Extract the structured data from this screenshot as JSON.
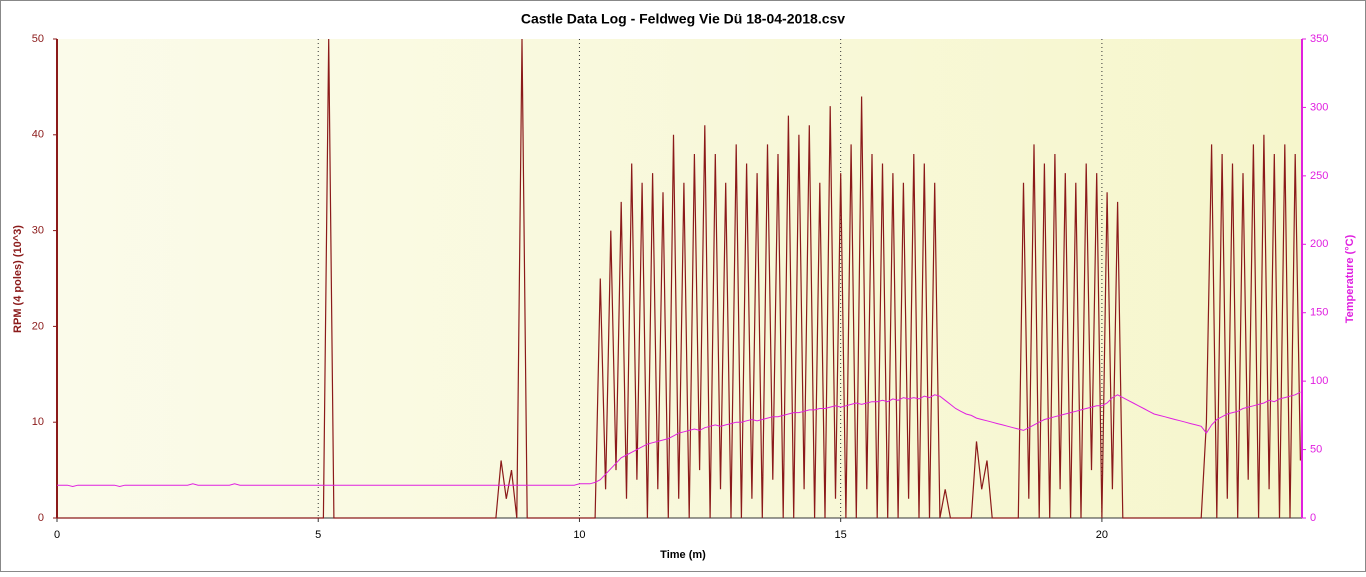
{
  "chart_data": {
    "type": "line",
    "title": "Castle Data Log - Feldweg Vie Dü 18-04-2018.csv",
    "x_label": "Time (m)",
    "y_label": "RPM (4 poles) (10^3)",
    "y2_label": "Temperature (°C)",
    "xlim": [
      0,
      23.83
    ],
    "xticks": [
      0,
      5,
      10,
      15,
      20
    ],
    "ylim": [
      0,
      50
    ],
    "yticks": [
      0,
      10,
      20,
      30,
      40,
      50
    ],
    "y2lim": [
      0,
      350
    ],
    "y2ticks": [
      0,
      50,
      100,
      150,
      200,
      250,
      300,
      350
    ],
    "grid": true,
    "x": [
      0,
      0.1,
      0.2,
      0.3,
      0.4,
      0.5,
      0.6,
      0.7,
      0.8,
      0.9,
      1,
      1.1,
      1.2,
      1.3,
      1.4,
      1.5,
      1.6,
      1.7,
      1.8,
      1.9,
      2,
      2.1,
      2.2,
      2.3,
      2.4,
      2.5,
      2.6,
      2.7,
      2.8,
      2.9,
      3,
      3.1,
      3.2,
      3.3,
      3.4,
      3.5,
      3.6,
      3.7,
      3.8,
      3.9,
      4,
      4.1,
      4.2,
      4.3,
      4.4,
      4.5,
      4.6,
      4.7,
      4.8,
      4.9,
      5,
      5.1,
      5.2,
      5.3,
      5.4,
      5.5,
      5.6,
      5.7,
      5.8,
      5.9,
      6,
      6.1,
      6.2,
      6.3,
      6.4,
      6.5,
      6.6,
      6.7,
      6.8,
      6.9,
      7,
      7.1,
      7.2,
      7.3,
      7.4,
      7.5,
      7.6,
      7.7,
      7.8,
      7.9,
      8,
      8.1,
      8.2,
      8.3,
      8.4,
      8.5,
      8.6,
      8.7,
      8.8,
      8.9,
      9,
      9.1,
      9.2,
      9.3,
      9.4,
      9.5,
      9.6,
      9.7,
      9.8,
      9.9,
      10,
      10.1,
      10.2,
      10.3,
      10.4,
      10.5,
      10.6,
      10.7,
      10.8,
      10.9,
      11,
      11.1,
      11.2,
      11.3,
      11.4,
      11.5,
      11.6,
      11.7,
      11.8,
      11.9,
      12,
      12.1,
      12.2,
      12.3,
      12.4,
      12.5,
      12.6,
      12.7,
      12.8,
      12.9,
      13,
      13.1,
      13.2,
      13.3,
      13.4,
      13.5,
      13.6,
      13.7,
      13.8,
      13.9,
      14,
      14.1,
      14.2,
      14.3,
      14.4,
      14.5,
      14.6,
      14.7,
      14.8,
      14.9,
      15,
      15.1,
      15.2,
      15.3,
      15.4,
      15.5,
      15.6,
      15.7,
      15.8,
      15.9,
      16,
      16.1,
      16.2,
      16.3,
      16.4,
      16.5,
      16.6,
      16.7,
      16.8,
      16.9,
      17,
      17.1,
      17.2,
      17.3,
      17.4,
      17.5,
      17.6,
      17.7,
      17.8,
      17.9,
      18,
      18.1,
      18.2,
      18.3,
      18.4,
      18.5,
      18.6,
      18.7,
      18.8,
      18.9,
      19,
      19.1,
      19.2,
      19.3,
      19.4,
      19.5,
      19.6,
      19.7,
      19.8,
      19.9,
      20,
      20.1,
      20.2,
      20.3,
      20.4,
      20.5,
      20.6,
      20.7,
      20.8,
      20.9,
      21,
      21.1,
      21.2,
      21.3,
      21.4,
      21.5,
      21.6,
      21.7,
      21.8,
      21.9,
      22,
      22.1,
      22.2,
      22.3,
      22.4,
      22.5,
      22.6,
      22.7,
      22.8,
      22.9,
      23,
      23.1,
      23.2,
      23.3,
      23.4,
      23.5,
      23.6,
      23.7,
      23.8
    ],
    "series": [
      {
        "name": "RPM (4 poles)",
        "color": "#8b1a1a",
        "axis": "y",
        "values": [
          0,
          0,
          0,
          0,
          0,
          0,
          0,
          0,
          0,
          0,
          0,
          0,
          0,
          0,
          0,
          0,
          0,
          0,
          0,
          0,
          0,
          0,
          0,
          0,
          0,
          0,
          0,
          0,
          0,
          0,
          0,
          0,
          0,
          0,
          0,
          0,
          0,
          0,
          0,
          0,
          0,
          0,
          0,
          0,
          0,
          0,
          0,
          0,
          0,
          0,
          0,
          0,
          50,
          0,
          0,
          0,
          0,
          0,
          0,
          0,
          0,
          0,
          0,
          0,
          0,
          0,
          0,
          0,
          0,
          0,
          0,
          0,
          0,
          0,
          0,
          0,
          0,
          0,
          0,
          0,
          0,
          0,
          0,
          0,
          0,
          6,
          2,
          5,
          0,
          50,
          0,
          0,
          0,
          0,
          0,
          0,
          0,
          0,
          0,
          0,
          0,
          0,
          0,
          0,
          25,
          3,
          30,
          5,
          33,
          2,
          37,
          4,
          35,
          0,
          36,
          3,
          34,
          0,
          40,
          2,
          35,
          0,
          38,
          5,
          41,
          0,
          38,
          3,
          35,
          0,
          39,
          0,
          37,
          2,
          36,
          0,
          39,
          4,
          38,
          0,
          42,
          0,
          40,
          3,
          41,
          0,
          35,
          0,
          43,
          2,
          36,
          0,
          39,
          0,
          44,
          3,
          38,
          0,
          37,
          0,
          36,
          0,
          35,
          2,
          38,
          0,
          37,
          0,
          35,
          0,
          3,
          0,
          0,
          0,
          0,
          0,
          8,
          3,
          6,
          0,
          0,
          0,
          0,
          0,
          0,
          35,
          2,
          39,
          0,
          37,
          0,
          38,
          3,
          36,
          0,
          35,
          0,
          37,
          5,
          36,
          0,
          34,
          3,
          33,
          0,
          0,
          0,
          0,
          0,
          0,
          0,
          0,
          0,
          0,
          0,
          0,
          0,
          0,
          0,
          0,
          10,
          39,
          0,
          38,
          2,
          37,
          0,
          36,
          4,
          39,
          0,
          40,
          3,
          38,
          0,
          39,
          0,
          38,
          6
        ]
      },
      {
        "name": "Temperature",
        "color": "#e020e0",
        "axis": "y2",
        "values": [
          24,
          24,
          24,
          23,
          24,
          24,
          24,
          24,
          24,
          24,
          24,
          24,
          23,
          24,
          24,
          24,
          24,
          24,
          24,
          24,
          24,
          24,
          24,
          24,
          24,
          24,
          25,
          24,
          24,
          24,
          24,
          24,
          24,
          24,
          25,
          24,
          24,
          24,
          24,
          24,
          24,
          24,
          24,
          24,
          24,
          24,
          24,
          24,
          24,
          24,
          24,
          24,
          24,
          24,
          24,
          24,
          24,
          24,
          24,
          24,
          24,
          24,
          24,
          24,
          24,
          24,
          24,
          24,
          24,
          24,
          24,
          24,
          24,
          24,
          24,
          24,
          24,
          24,
          24,
          24,
          24,
          24,
          24,
          24,
          24,
          24,
          24,
          24,
          24,
          24,
          24,
          24,
          24,
          24,
          24,
          24,
          24,
          24,
          24,
          24,
          25,
          25,
          25,
          26,
          28,
          32,
          36,
          40,
          44,
          46,
          48,
          50,
          52,
          54,
          55,
          56,
          57,
          58,
          60,
          62,
          63,
          64,
          65,
          64,
          66,
          67,
          68,
          67,
          68,
          69,
          70,
          70,
          71,
          72,
          71,
          72,
          73,
          74,
          74,
          75,
          76,
          77,
          77,
          78,
          79,
          79,
          80,
          80,
          81,
          82,
          81,
          82,
          83,
          84,
          83,
          84,
          85,
          85,
          86,
          85,
          87,
          86,
          88,
          87,
          88,
          87,
          89,
          88,
          90,
          89,
          86,
          83,
          80,
          78,
          76,
          75,
          73,
          72,
          71,
          70,
          69,
          68,
          67,
          66,
          65,
          64,
          66,
          68,
          70,
          72,
          73,
          74,
          75,
          76,
          77,
          78,
          79,
          80,
          81,
          82,
          82,
          84,
          88,
          90,
          88,
          86,
          84,
          82,
          80,
          78,
          76,
          75,
          74,
          73,
          72,
          71,
          70,
          69,
          68,
          67,
          62,
          68,
          72,
          74,
          76,
          77,
          78,
          80,
          81,
          82,
          83,
          84,
          86,
          85,
          87,
          88,
          89,
          90,
          92
        ]
      }
    ]
  }
}
